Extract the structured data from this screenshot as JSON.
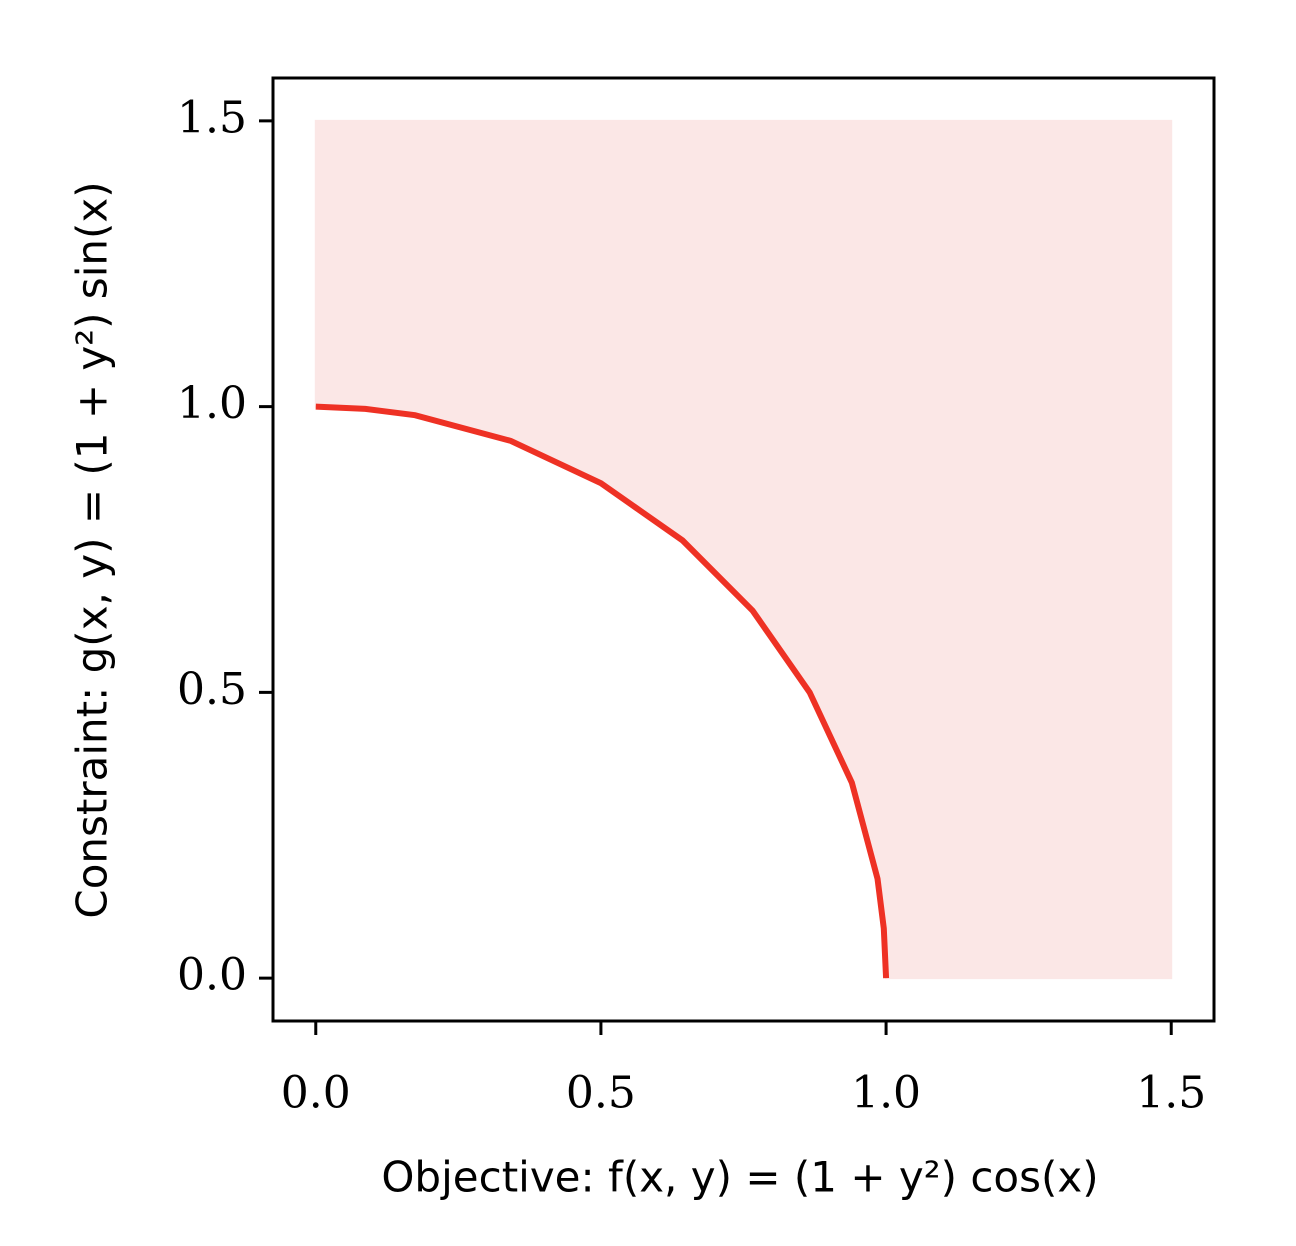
{
  "chart_data": {
    "type": "line",
    "x_label": "Objective:  f(x, y) = (1 + y²) cos(x)",
    "y_label": "Constraint:  g(x, y) = (1 + y²) sin(x)",
    "xlim": [
      -0.075,
      1.575
    ],
    "ylim": [
      -0.075,
      1.575
    ],
    "xticks": [
      {
        "value": 0,
        "label": "0.0"
      },
      0.5,
      {
        "value": 1,
        "label": "1.0"
      },
      1.5
    ],
    "yticks": [
      {
        "value": 0,
        "label": "0.0"
      },
      0.5,
      {
        "value": 1,
        "label": "1.0"
      },
      1.5
    ],
    "grid": false,
    "fill": {
      "color": "#fbe7e6",
      "x": [
        0,
        0.087,
        0.174,
        0.342,
        0.5,
        0.643,
        0.766,
        0.866,
        0.94,
        0.985,
        0.996,
        1,
        1.5
      ],
      "y1": [
        1,
        0.996,
        0.985,
        0.94,
        0.866,
        0.766,
        0.643,
        0.5,
        0.342,
        0.174,
        0.087,
        0,
        0
      ],
      "y2": [
        1.5,
        1.5,
        1.5,
        1.5,
        1.5,
        1.5,
        1.5,
        1.5,
        1.5,
        1.5,
        1.5,
        1.5,
        1.5
      ]
    },
    "series": [
      {
        "color": "#ee3124",
        "x": [
          0,
          0.087,
          0.174,
          0.342,
          0.5,
          0.643,
          0.766,
          0.866,
          0.94,
          0.985,
          0.996,
          1
        ],
        "values": [
          1,
          0.996,
          0.985,
          0.94,
          0.866,
          0.766,
          0.643,
          0.5,
          0.342,
          0.174,
          0.087,
          0
        ]
      }
    ]
  }
}
